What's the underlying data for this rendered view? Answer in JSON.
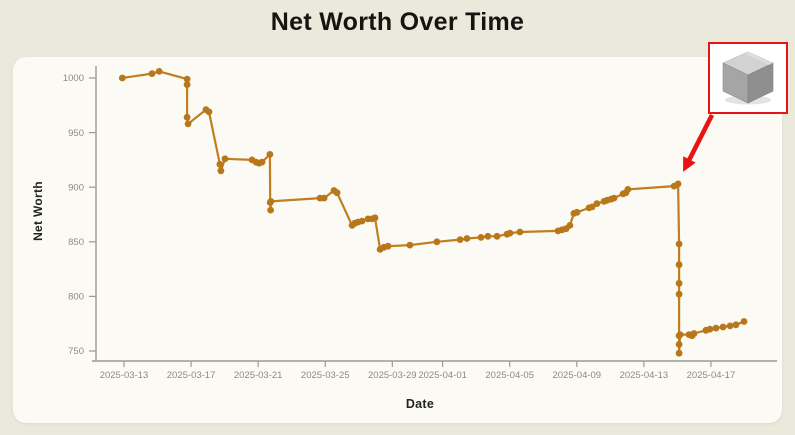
{
  "page": {
    "title": "Net Worth Over Time"
  },
  "chart_data": {
    "type": "line",
    "title": "Net Worth Over Time",
    "xlabel": "Date",
    "ylabel": "Net Worth",
    "legend": null,
    "grid": false,
    "series_color": "#c07e1e",
    "point_color": "#b8771b",
    "axis_color": "#9b9b93",
    "background": "#ebe8dc",
    "card_background": "#fbfaf4",
    "ylim": [
      740,
      1010
    ],
    "y_ticks": [
      "750",
      "800",
      "850",
      "900",
      "950",
      "1000"
    ],
    "y_tick_values": [
      750,
      800,
      850,
      900,
      950,
      1000
    ],
    "x_ticks": [
      {
        "label": "2025-03-13",
        "t": 0
      },
      {
        "label": "2025-03-17",
        "t": 4
      },
      {
        "label": "2025-03-21",
        "t": 8
      },
      {
        "label": "2025-03-25",
        "t": 12
      },
      {
        "label": "2025-03-29",
        "t": 16
      },
      {
        "label": "2025-04-01",
        "t": 19
      },
      {
        "label": "2025-04-05",
        "t": 23
      },
      {
        "label": "2025-04-09",
        "t": 27
      },
      {
        "label": "2025-04-13",
        "t": 31
      },
      {
        "label": "2025-04-17",
        "t": 35
      }
    ],
    "x_unit": "days since 2025-03-13",
    "points": [
      [
        -0.1,
        1000
      ],
      [
        1.67,
        1004
      ],
      [
        2.1,
        1006
      ],
      [
        3.76,
        999
      ],
      [
        3.76,
        994
      ],
      [
        3.76,
        964
      ],
      [
        3.82,
        958
      ],
      [
        4.89,
        971
      ],
      [
        5.07,
        969
      ],
      [
        5.72,
        921
      ],
      [
        5.78,
        915
      ],
      [
        6.02,
        926
      ],
      [
        7.63,
        925
      ],
      [
        7.87,
        923
      ],
      [
        8.05,
        922
      ],
      [
        8.23,
        923
      ],
      [
        8.7,
        930
      ],
      [
        8.72,
        886
      ],
      [
        8.74,
        879
      ],
      [
        8.76,
        887
      ],
      [
        11.69,
        890
      ],
      [
        11.93,
        890
      ],
      [
        12.52,
        897
      ],
      [
        12.7,
        895
      ],
      [
        13.6,
        865
      ],
      [
        13.77,
        867
      ],
      [
        13.95,
        868
      ],
      [
        14.19,
        869
      ],
      [
        14.55,
        871
      ],
      [
        14.79,
        871
      ],
      [
        14.97,
        872
      ],
      [
        15.27,
        843
      ],
      [
        15.5,
        845
      ],
      [
        15.74,
        846
      ],
      [
        17.05,
        847
      ],
      [
        18.66,
        850
      ],
      [
        20.04,
        852
      ],
      [
        20.45,
        853
      ],
      [
        21.29,
        854
      ],
      [
        21.7,
        855
      ],
      [
        22.24,
        855
      ],
      [
        22.84,
        857
      ],
      [
        23.02,
        858
      ],
      [
        23.61,
        859
      ],
      [
        25.88,
        860
      ],
      [
        26.12,
        861
      ],
      [
        26.36,
        862
      ],
      [
        26.59,
        865
      ],
      [
        26.83,
        876
      ],
      [
        27.01,
        877
      ],
      [
        27.73,
        881
      ],
      [
        27.91,
        882
      ],
      [
        28.2,
        885
      ],
      [
        28.62,
        887
      ],
      [
        28.8,
        888
      ],
      [
        29.04,
        889
      ],
      [
        29.22,
        890
      ],
      [
        29.76,
        894
      ],
      [
        29.93,
        895
      ],
      [
        30.05,
        898
      ],
      [
        32.8,
        901
      ],
      [
        33.04,
        903
      ],
      [
        33.1,
        848
      ],
      [
        33.1,
        829
      ],
      [
        33.1,
        812
      ],
      [
        33.1,
        802
      ],
      [
        33.1,
        764
      ],
      [
        33.1,
        756
      ],
      [
        33.1,
        748
      ],
      [
        33.16,
        765
      ],
      [
        33.69,
        765
      ],
      [
        33.87,
        764
      ],
      [
        33.99,
        766
      ],
      [
        34.7,
        769
      ],
      [
        34.94,
        770
      ],
      [
        35.3,
        771
      ],
      [
        35.72,
        772
      ],
      [
        36.14,
        773
      ],
      [
        36.49,
        774
      ],
      [
        36.97,
        777
      ]
    ]
  },
  "annotation": {
    "icon": "metal-cube",
    "box_border_color": "#e81414",
    "arrow_color": "#e81414",
    "target": {
      "t": 33.04,
      "value": 903
    }
  }
}
